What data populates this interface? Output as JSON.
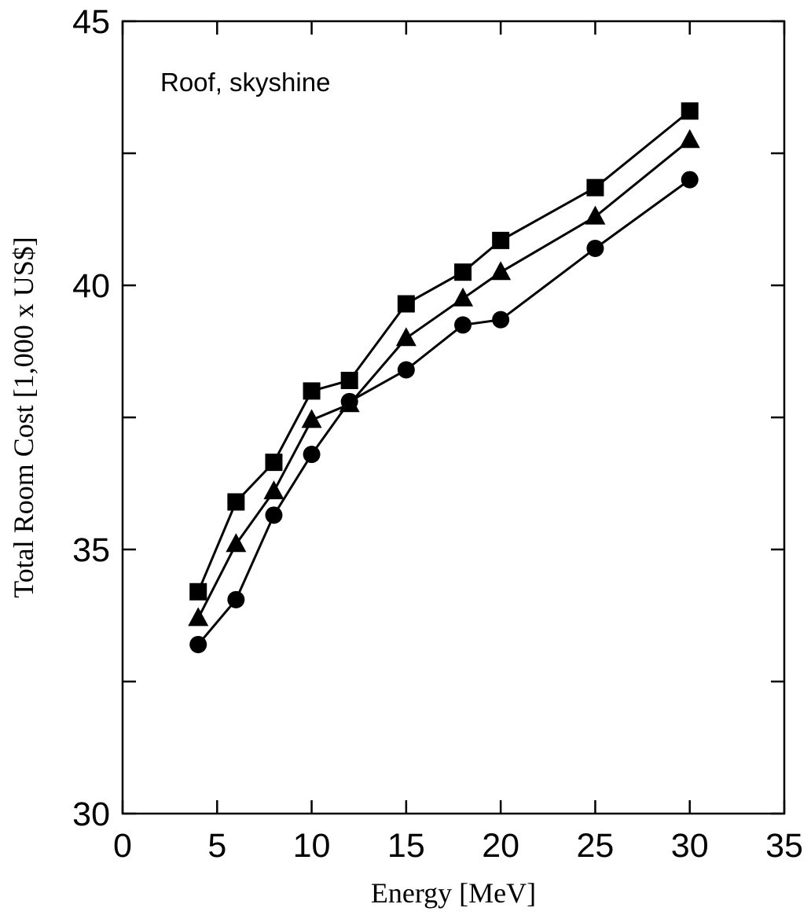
{
  "chart_data": {
    "type": "line",
    "title": "",
    "xlabel": "Energy [MeV]",
    "ylabel": "Total Room Cost [1,000 x US$]",
    "annotation": "Roof, skyshine",
    "xlim": [
      0,
      35
    ],
    "ylim": [
      30,
      45
    ],
    "xticks": [
      0,
      5,
      10,
      15,
      20,
      25,
      30,
      35
    ],
    "xtick_labels": [
      "0",
      "5",
      "10",
      "15",
      "20",
      "25",
      "30",
      "35"
    ],
    "yticks": [
      30,
      35,
      40,
      45
    ],
    "ytick_labels": [
      "30",
      "35",
      "40",
      "45"
    ],
    "y_minor_ticks": [
      32.5,
      37.5,
      42.5
    ],
    "grid": false,
    "legend": "none",
    "x": [
      4,
      6,
      8,
      10,
      12,
      15,
      18,
      20,
      25,
      30
    ],
    "series": [
      {
        "marker": "square",
        "values": [
          34.2,
          35.9,
          36.65,
          38.0,
          38.2,
          39.65,
          40.25,
          40.85,
          41.85,
          43.3
        ]
      },
      {
        "marker": "triangle",
        "values": [
          33.7,
          35.1,
          36.1,
          37.45,
          37.75,
          39.0,
          39.75,
          40.25,
          41.3,
          42.75
        ]
      },
      {
        "marker": "circle",
        "values": [
          33.2,
          34.05,
          35.65,
          36.8,
          37.8,
          38.4,
          39.25,
          39.35,
          40.7,
          42.0
        ]
      }
    ],
    "colors": {
      "line": "#000000",
      "marker": "#000000",
      "background": "#ffffff"
    }
  }
}
